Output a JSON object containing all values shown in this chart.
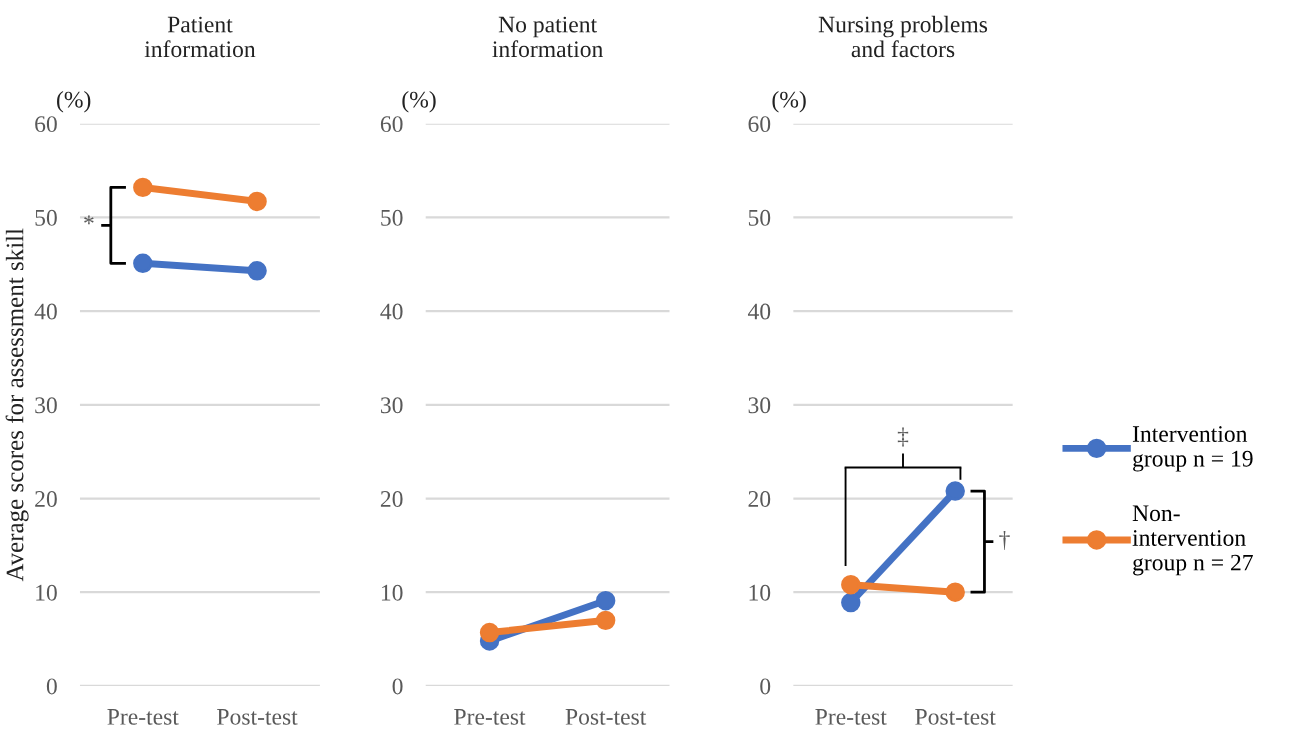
{
  "chart_data": [
    {
      "type": "line",
      "title": "Patient\ninformation",
      "ylabel": "Average scores for assessment skill",
      "categories": [
        "Pre-test",
        "Post-test"
      ],
      "series": [
        {
          "color": "#4472c4",
          "values": [
            45.1,
            44.3
          ]
        },
        {
          "color": "#ed7d31",
          "values": [
            53.2,
            51.7
          ]
        }
      ],
      "ylim": [
        0,
        60
      ],
      "yticks": [
        0,
        10,
        20,
        30,
        40,
        50,
        60
      ],
      "grid": "y",
      "marker": "circle",
      "line_style": "solid",
      "annotations": [
        "(%)",
        "*"
      ]
    },
    {
      "type": "line",
      "title": "No patient\ninformation",
      "categories": [
        "Pre-test",
        "Post-test"
      ],
      "series": [
        {
          "color": "#4472c4",
          "values": [
            4.8,
            9.1
          ]
        },
        {
          "color": "#ed7d31",
          "values": [
            5.7,
            7.0
          ]
        }
      ],
      "ylim": [
        0,
        60
      ],
      "yticks": [
        0,
        10,
        20,
        30,
        40,
        50,
        60
      ],
      "grid": "y",
      "marker": "circle",
      "line_style": "solid",
      "annotations": [
        "(%)"
      ]
    },
    {
      "type": "line",
      "title": "Nursing problems\nand factors",
      "categories": [
        "Pre-test",
        "Post-test"
      ],
      "series": [
        {
          "name": "Intervention\ngroup n = 19",
          "color": "#4472c4",
          "values": [
            8.9,
            20.8
          ]
        },
        {
          "name": "Non-\nintervention\ngroup n = 27",
          "color": "#ed7d31",
          "values": [
            10.8,
            10.0
          ]
        }
      ],
      "ylim": [
        0,
        60
      ],
      "yticks": [
        0,
        10,
        20,
        30,
        40,
        50,
        60
      ],
      "grid": "y",
      "marker": "circle",
      "line_style": "solid",
      "legend": "right",
      "annotations": [
        "(%)",
        "‡",
        "†"
      ]
    }
  ]
}
